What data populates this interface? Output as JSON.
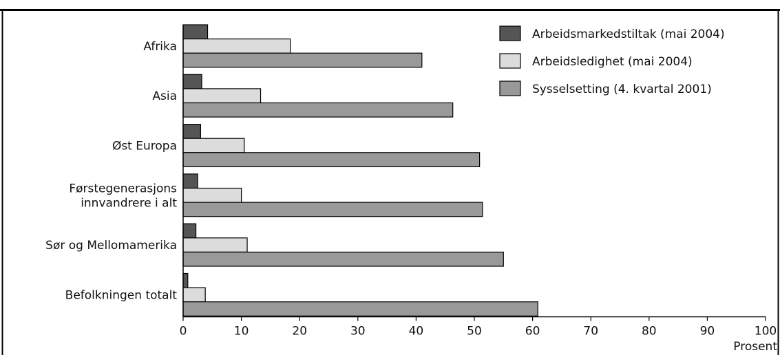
{
  "chart_data": {
    "type": "bar",
    "orientation": "horizontal",
    "categories": [
      [
        "Afrika"
      ],
      [
        "Asia"
      ],
      [
        "Øst Europa"
      ],
      [
        "Førstegenerasjons",
        "innvandrere i alt"
      ],
      [
        "Sør og Mellomamerika"
      ],
      [
        "Befolkningen totalt"
      ]
    ],
    "series": [
      {
        "name": "Arbeidsmarkedstiltak (mai 2004)",
        "color": "#555555",
        "values": [
          4.2,
          3.2,
          3.0,
          2.5,
          2.2,
          0.8
        ]
      },
      {
        "name": "Arbeidsledighet (mai 2004)",
        "color": "#dcdcdc",
        "values": [
          18.4,
          13.3,
          10.5,
          10.0,
          11.0,
          3.8
        ]
      },
      {
        "name": "Sysselsetting (4. kvartal 2001)",
        "color": "#999999",
        "values": [
          41.0,
          46.3,
          50.9,
          51.4,
          55.0,
          60.9
        ]
      }
    ],
    "xlim": [
      0,
      100
    ],
    "xticks": [
      0,
      10,
      20,
      30,
      40,
      50,
      60,
      70,
      80,
      90,
      100
    ],
    "xlabel": "Prosent",
    "legend_position": "top-right",
    "grid": false
  }
}
